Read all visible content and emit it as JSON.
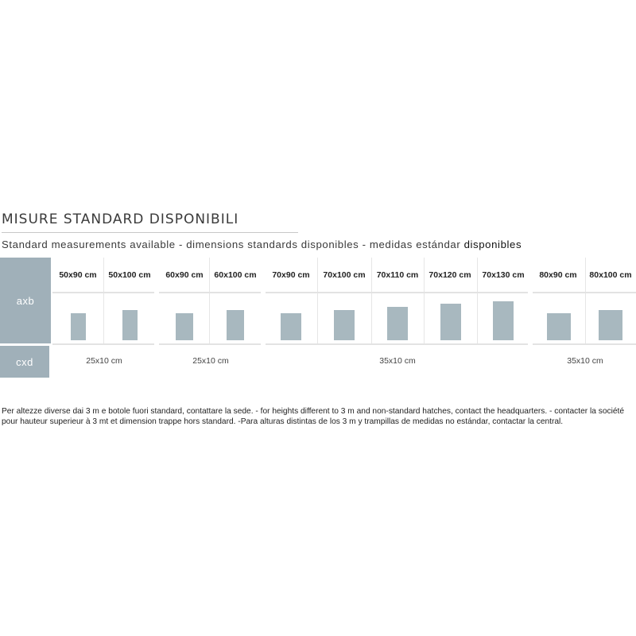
{
  "title": "MISURE STANDARD DISPONIBILI",
  "subtitle_main": "Standard measurements available - dimensions standards disponibles - medidas estándar ",
  "subtitle_tail": "disponibles",
  "row_labels": {
    "axb": "axb",
    "cxd": "cxd"
  },
  "sizes": [
    {
      "label": "50x90 cm",
      "width_cm": 50,
      "height_cm": 90
    },
    {
      "label": "50x100 cm",
      "width_cm": 50,
      "height_cm": 100
    },
    {
      "label": "60x90 cm",
      "width_cm": 60,
      "height_cm": 90
    },
    {
      "label": "60x100 cm",
      "width_cm": 60,
      "height_cm": 100
    },
    {
      "label": "70x90 cm",
      "width_cm": 70,
      "height_cm": 90
    },
    {
      "label": "70x100 cm",
      "width_cm": 70,
      "height_cm": 100
    },
    {
      "label": "70x110 cm",
      "width_cm": 70,
      "height_cm": 110
    },
    {
      "label": "70x120 cm",
      "width_cm": 70,
      "height_cm": 120
    },
    {
      "label": "70x130 cm",
      "width_cm": 70,
      "height_cm": 130
    },
    {
      "label": "80x90 cm",
      "width_cm": 80,
      "height_cm": 90
    },
    {
      "label": "80x100 cm",
      "width_cm": 80,
      "height_cm": 100
    }
  ],
  "cxd_values": [
    "25x10 cm",
    "25x10 cm",
    "35x10 cm",
    "35x10 cm"
  ],
  "note_line1": "Per altezze diverse dai 3 m e botole fuori standard, contattare la sede. - for heights different to 3 m and non-standard hatches, contact the headquarters.  - contacter la société",
  "note_line2": "pour hauteur superieur à 3 mt et dimension trappe hors standard. -Para alturas distintas de los 3 m y trampillas de medidas no estándar, contactar la central."
}
